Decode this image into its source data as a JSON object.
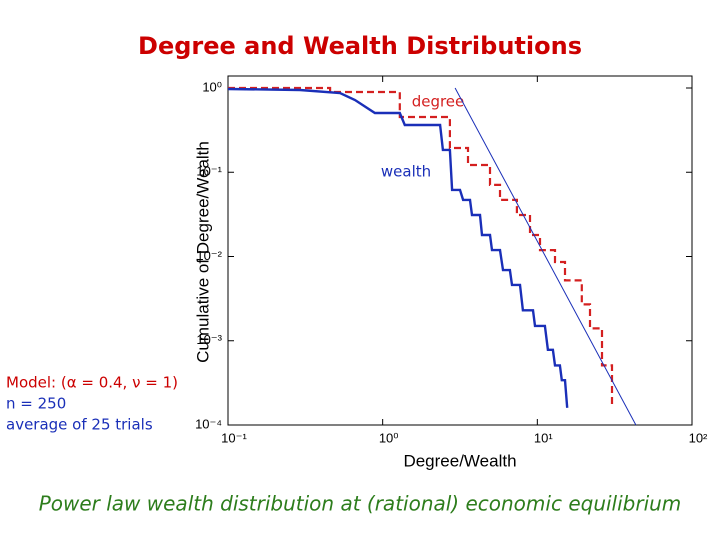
{
  "chart_data": {
    "type": "line",
    "title": "Degree and Wealth Distributions",
    "title_color": "#cc0000",
    "xlabel": "Degree/Wealth",
    "ylabel": "Cumulative of Degree/Wealth",
    "xscale": "log",
    "yscale": "log",
    "grid": false,
    "xlim": [
      0.1,
      100
    ],
    "ylim": [
      0.0001,
      1
    ],
    "xticks": [
      {
        "value": 0.1,
        "label": "10⁻¹"
      },
      {
        "value": 1,
        "label": "10⁰"
      },
      {
        "value": 10,
        "label": "10¹"
      },
      {
        "value": 100,
        "label": "10²"
      }
    ],
    "yticks": [
      {
        "value": 0.0001,
        "label": "10⁻⁴"
      },
      {
        "value": 0.001,
        "label": "10⁻³"
      },
      {
        "value": 0.01,
        "label": "10⁻²"
      },
      {
        "value": 0.1,
        "label": "10⁻¹"
      },
      {
        "value": 1,
        "label": "10⁰"
      }
    ],
    "series": [
      {
        "name": "degree",
        "color": "#d42020",
        "dashed": true,
        "width": 2.2,
        "x": [
          0.1,
          0.457,
          0.457,
          1.29,
          1.29,
          2.72,
          2.72,
          3.56,
          3.56,
          4.94,
          4.94,
          5.74,
          5.74,
          7.38,
          7.38,
          8.97,
          8.97,
          10.4,
          10.4,
          13.0,
          13.0,
          15.1,
          15.1,
          19.4,
          19.4,
          21.9,
          21.9,
          26.2,
          26.2,
          30.4,
          30.4
        ],
        "values": [
          1,
          1,
          0.896,
          0.896,
          0.453,
          0.453,
          0.194,
          0.194,
          0.122,
          0.122,
          0.0707,
          0.0707,
          0.047,
          0.047,
          0.0311,
          0.0311,
          0.018,
          0.018,
          0.0119,
          0.0119,
          0.0086,
          0.0086,
          0.0052,
          0.0052,
          0.0027,
          0.0027,
          0.0014,
          0.0014,
          0.00051,
          0.00051,
          0.00016
        ]
      },
      {
        "name": "wealth",
        "color": "#1a2fb8",
        "dashed": false,
        "width": 2.4,
        "x": [
          0.1,
          0.292,
          0.53,
          0.662,
          0.891,
          1.29,
          1.39,
          2.35,
          2.45,
          2.72,
          2.81,
          3.16,
          3.31,
          3.67,
          3.78,
          4.26,
          4.39,
          4.94,
          5.09,
          5.74,
          6.0,
          6.65,
          6.86,
          7.73,
          8.07,
          9.38,
          9.66,
          11.2,
          11.7,
          12.6,
          13.0,
          14.0,
          14.4,
          15.1,
          15.6
        ],
        "values": [
          0.973,
          0.947,
          0.872,
          0.72,
          0.505,
          0.505,
          0.364,
          0.364,
          0.184,
          0.184,
          0.0617,
          0.0617,
          0.047,
          0.047,
          0.0311,
          0.0311,
          0.018,
          0.018,
          0.0119,
          0.0119,
          0.0069,
          0.0069,
          0.0046,
          0.0046,
          0.0023,
          0.0023,
          0.0015,
          0.0015,
          0.00078,
          0.00078,
          0.00051,
          0.00051,
          0.00034,
          0.00034,
          0.00016
        ]
      },
      {
        "color": "#1a2fb8",
        "dashed": false,
        "width": 1,
        "x": [
          2.94,
          43.4
        ],
        "values": [
          1,
          0.0001
        ]
      }
    ],
    "annotations": [
      {
        "text": "Model: (α = 0.4, ν = 1)",
        "color": "#cc0000"
      },
      {
        "text": "n = 250",
        "color": "#1a2fb8"
      },
      {
        "text": "average of 25 trials",
        "color": "#1a2fb8"
      }
    ],
    "caption": "Power law wealth distribution at (rational) economic equilibrium",
    "caption_color": "#2d7d1c"
  }
}
